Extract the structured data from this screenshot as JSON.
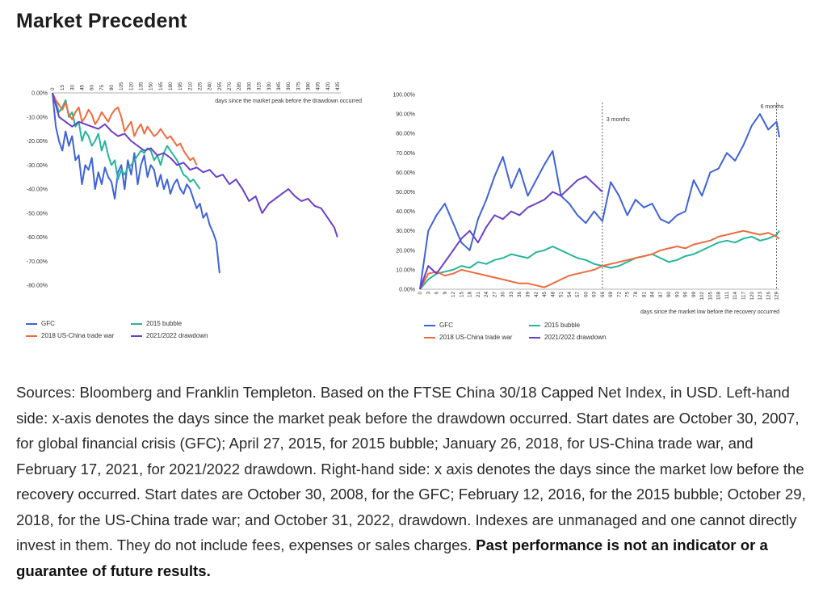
{
  "page": {
    "title": "Market Precedent",
    "sources_text": "Sources: Bloomberg and Franklin Templeton. Based on the FTSE China 30/18 Capped Net Index, in USD. Left-hand side: x-axis denotes the days since the market peak before the drawdown occurred. Start dates are October 30, 2007, for global financial crisis (GFC); April 27, 2015, for 2015 bubble; January 26, 2018, for US-China trade war, and February 17, 2021, for 2021/2022 drawdown. Right-hand side: x axis denotes the days since the market low before the recovery occurred. Start dates are October 30, 2008, for the GFC; February 12, 2016, for the 2015 bubble; October 29, 2018, for the US-China trade war; and October 31, 2022, drawdown. Indexes are unmanaged and one cannot directly invest in them. They do not include fees, expenses or sales charges.",
    "sources_bold": "Past performance is not an indicator or a guarantee of future results."
  },
  "colors": {
    "gfc": "#3f63d8",
    "bubble": "#26b59a",
    "tradewar": "#ee6b3f",
    "drawdown": "#6a3fc9"
  },
  "chart_data": [
    {
      "type": "line",
      "xlabel": "days since the market peak before the drawdown occurred",
      "xlim": [
        0,
        440
      ],
      "ylim": [
        -80,
        0
      ],
      "y_ticks": [
        0,
        -10,
        -20,
        -30,
        -40,
        -50,
        -60,
        -70,
        -80
      ],
      "y_tick_labels": [
        "0.00%",
        "-10.00%",
        "-20.00%",
        "-30.00%",
        "-40.00%",
        "-50.00%",
        "-60.00%",
        "-70.00%",
        "-80.00%"
      ],
      "x_ticks": [
        0,
        15,
        30,
        45,
        60,
        75,
        90,
        105,
        120,
        135,
        150,
        165,
        180,
        195,
        210,
        225,
        240,
        255,
        270,
        285,
        300,
        315,
        330,
        345,
        360,
        375,
        390,
        405,
        420,
        435
      ],
      "x_axis_position": "top",
      "series": [
        {
          "name": "GFC",
          "color_key": "gfc",
          "x": [
            0,
            5,
            10,
            15,
            20,
            25,
            30,
            35,
            40,
            45,
            50,
            55,
            60,
            65,
            70,
            75,
            80,
            85,
            90,
            95,
            100,
            105,
            110,
            115,
            120,
            125,
            130,
            135,
            140,
            145,
            150,
            155,
            160,
            165,
            170,
            175,
            180,
            185,
            190,
            195,
            200,
            205,
            210,
            215,
            220,
            225,
            230,
            235,
            240,
            245,
            250,
            255
          ],
          "y": [
            0,
            -14,
            -20,
            -24,
            -16,
            -22,
            -18,
            -28,
            -26,
            -38,
            -30,
            -32,
            -27,
            -40,
            -33,
            -38,
            -31,
            -35,
            -37,
            -44,
            -33,
            -30,
            -40,
            -28,
            -34,
            -25,
            -38,
            -30,
            -26,
            -35,
            -30,
            -32,
            -39,
            -34,
            -40,
            -36,
            -42,
            -38,
            -36,
            -40,
            -42,
            -38,
            -40,
            -44,
            -48,
            -46,
            -52,
            -50,
            -55,
            -58,
            -62,
            -75
          ]
        },
        {
          "name": "2015 bubble",
          "color_key": "bubble",
          "x": [
            0,
            5,
            10,
            15,
            20,
            25,
            30,
            35,
            40,
            45,
            50,
            55,
            60,
            65,
            70,
            75,
            80,
            85,
            90,
            95,
            100,
            105,
            110,
            115,
            120,
            125,
            130,
            135,
            140,
            145,
            150,
            155,
            160,
            165,
            170,
            175,
            180,
            185,
            190,
            195,
            200,
            205,
            210,
            215,
            220,
            225
          ],
          "y": [
            0,
            -4,
            -8,
            -6,
            -3,
            -10,
            -8,
            -14,
            -12,
            -20,
            -16,
            -18,
            -22,
            -20,
            -17,
            -24,
            -20,
            -26,
            -30,
            -28,
            -36,
            -32,
            -34,
            -31,
            -30,
            -28,
            -26,
            -24,
            -25,
            -23,
            -24,
            -28,
            -26,
            -30,
            -25,
            -22,
            -24,
            -26,
            -28,
            -31,
            -34,
            -35,
            -37,
            -36,
            -38,
            -40
          ]
        },
        {
          "name": "2018 US-China trade war",
          "color_key": "tradewar",
          "x": [
            0,
            5,
            10,
            15,
            20,
            25,
            30,
            35,
            40,
            45,
            50,
            55,
            60,
            65,
            70,
            75,
            80,
            85,
            90,
            95,
            100,
            105,
            110,
            115,
            120,
            125,
            130,
            135,
            140,
            145,
            150,
            155,
            160,
            165,
            170,
            175,
            180,
            185,
            190,
            195,
            200,
            205,
            210,
            215,
            220
          ],
          "y": [
            0,
            -3,
            -5,
            -7,
            -4,
            -9,
            -11,
            -8,
            -6,
            -12,
            -10,
            -7,
            -9,
            -13,
            -11,
            -8,
            -10,
            -12,
            -9,
            -7,
            -6,
            -10,
            -16,
            -14,
            -12,
            -18,
            -15,
            -13,
            -17,
            -14,
            -16,
            -18,
            -17,
            -15,
            -17,
            -19,
            -18,
            -20,
            -22,
            -21,
            -24,
            -26,
            -28,
            -27,
            -30
          ]
        },
        {
          "name": "2021/2022 drawdown",
          "color_key": "drawdown",
          "x": [
            0,
            10,
            20,
            30,
            40,
            50,
            60,
            70,
            80,
            90,
            100,
            110,
            120,
            130,
            140,
            150,
            160,
            170,
            180,
            190,
            200,
            210,
            220,
            230,
            240,
            250,
            260,
            270,
            280,
            290,
            300,
            310,
            320,
            330,
            340,
            350,
            360,
            370,
            380,
            390,
            400,
            410,
            420,
            430,
            435
          ],
          "y": [
            0,
            -10,
            -12,
            -14,
            -12,
            -13,
            -14,
            -15,
            -13,
            -16,
            -18,
            -17,
            -20,
            -22,
            -24,
            -23,
            -26,
            -25,
            -27,
            -30,
            -29,
            -32,
            -31,
            -33,
            -32,
            -35,
            -34,
            -38,
            -36,
            -40,
            -45,
            -43,
            -50,
            -46,
            -44,
            -42,
            -40,
            -43,
            -45,
            -44,
            -47,
            -48,
            -52,
            -56,
            -60
          ]
        }
      ]
    },
    {
      "type": "line",
      "xlabel": "days since the market low before the recovery occurred",
      "xlim": [
        0,
        130
      ],
      "ylim": [
        0,
        100
      ],
      "y_ticks": [
        0,
        10,
        20,
        30,
        40,
        50,
        60,
        70,
        80,
        90,
        100
      ],
      "y_tick_labels": [
        "0.00%",
        "10.00%",
        "20.00%",
        "30.00%",
        "40.00%",
        "50.00%",
        "60.00%",
        "70.00%",
        "80.00%",
        "90.00%",
        "100.00%"
      ],
      "x_ticks": [
        0,
        3,
        6,
        9,
        12,
        15,
        18,
        21,
        24,
        27,
        30,
        33,
        36,
        39,
        42,
        45,
        48,
        51,
        54,
        57,
        60,
        63,
        66,
        69,
        72,
        75,
        78,
        81,
        84,
        87,
        90,
        93,
        96,
        99,
        102,
        105,
        108,
        111,
        114,
        117,
        120,
        123,
        126,
        129
      ],
      "annotations": [
        {
          "text": "3 months",
          "x": 66
        },
        {
          "text": "6 months",
          "x": 129
        }
      ],
      "series": [
        {
          "name": "GFC",
          "color_key": "gfc",
          "x": [
            0,
            3,
            6,
            9,
            12,
            15,
            18,
            21,
            24,
            27,
            30,
            33,
            36,
            39,
            42,
            45,
            48,
            51,
            54,
            57,
            60,
            63,
            66,
            69,
            72,
            75,
            78,
            81,
            84,
            87,
            90,
            93,
            96,
            99,
            102,
            105,
            108,
            111,
            114,
            117,
            120,
            123,
            126,
            129,
            130
          ],
          "y": [
            0,
            30,
            38,
            44,
            34,
            24,
            20,
            36,
            46,
            58,
            68,
            52,
            62,
            48,
            56,
            64,
            71,
            48,
            44,
            38,
            34,
            40,
            35,
            55,
            48,
            38,
            46,
            42,
            44,
            36,
            34,
            38,
            40,
            56,
            48,
            60,
            62,
            70,
            66,
            74,
            84,
            90,
            82,
            86,
            78
          ]
        },
        {
          "name": "2015 bubble",
          "color_key": "bubble",
          "x": [
            0,
            3,
            6,
            9,
            12,
            15,
            18,
            21,
            24,
            27,
            30,
            33,
            36,
            39,
            42,
            45,
            48,
            51,
            54,
            57,
            60,
            63,
            66,
            69,
            72,
            75,
            78,
            81,
            84,
            87,
            90,
            93,
            96,
            99,
            102,
            105,
            108,
            111,
            114,
            117,
            120,
            123,
            126,
            129,
            130
          ],
          "y": [
            0,
            5,
            8,
            9,
            10,
            12,
            11,
            14,
            13,
            15,
            16,
            18,
            17,
            16,
            19,
            20,
            22,
            20,
            18,
            16,
            15,
            13,
            12,
            11,
            12,
            14,
            16,
            17,
            18,
            16,
            14,
            15,
            17,
            18,
            20,
            22,
            24,
            25,
            24,
            26,
            27,
            25,
            26,
            28,
            30
          ]
        },
        {
          "name": "2018 US-China trade war",
          "color_key": "tradewar",
          "x": [
            0,
            3,
            6,
            9,
            12,
            15,
            18,
            21,
            24,
            27,
            30,
            33,
            36,
            39,
            42,
            45,
            48,
            51,
            54,
            57,
            60,
            63,
            66,
            69,
            72,
            75,
            78,
            81,
            84,
            87,
            90,
            93,
            96,
            99,
            102,
            105,
            108,
            111,
            114,
            117,
            120,
            123,
            126,
            129,
            130
          ],
          "y": [
            0,
            8,
            9,
            7,
            8,
            10,
            9,
            8,
            7,
            6,
            5,
            4,
            3,
            3,
            2,
            1,
            3,
            5,
            7,
            8,
            9,
            10,
            12,
            13,
            14,
            15,
            16,
            17,
            18,
            20,
            21,
            22,
            21,
            23,
            24,
            25,
            27,
            28,
            29,
            30,
            29,
            28,
            29,
            27,
            26
          ]
        },
        {
          "name": "2021/2022 drawdown",
          "color_key": "drawdown",
          "x": [
            0,
            3,
            6,
            9,
            12,
            15,
            18,
            21,
            24,
            27,
            30,
            33,
            36,
            39,
            42,
            45,
            48,
            51,
            54,
            57,
            60,
            63,
            66
          ],
          "y": [
            0,
            12,
            8,
            14,
            20,
            26,
            30,
            24,
            32,
            38,
            36,
            40,
            38,
            42,
            44,
            46,
            50,
            48,
            52,
            56,
            58,
            54,
            50
          ]
        }
      ]
    }
  ]
}
